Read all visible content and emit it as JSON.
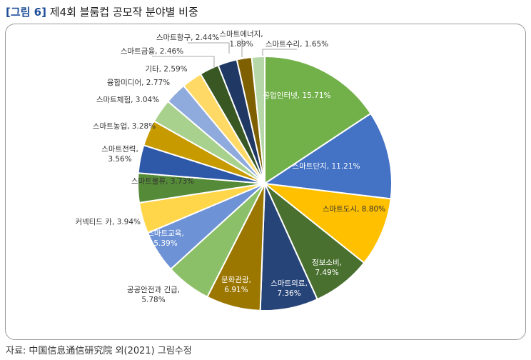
{
  "figure": {
    "tag": "[그림 6]",
    "title": "제4회 블룸컵 공모작 분야별 비중"
  },
  "source": "자료: 中国信息通信研究院 외(2021) 그림수정",
  "chart_data": {
    "type": "pie",
    "title": "",
    "categories": [
      "공업인터넷",
      "스마트단지",
      "스마트도시",
      "정보소비",
      "스마트의료",
      "문화관광",
      "공공안전과 긴급",
      "스마트교육",
      "커넥티드 카",
      "스마트물류",
      "스마트전력",
      "스마트농업",
      "스마트체험",
      "융합미디어",
      "기타",
      "스마트금융",
      "스마트항구",
      "스마트에너지",
      "스마트수리"
    ],
    "values": [
      15.71,
      11.21,
      8.8,
      7.49,
      7.36,
      6.91,
      5.78,
      5.39,
      3.94,
      3.73,
      3.56,
      3.28,
      3.04,
      2.77,
      2.59,
      2.46,
      2.44,
      1.89,
      1.65
    ],
    "labels": [
      "공업인터넷, 15.71%",
      "스마트단지, 11.21%",
      "스마트도시, 8.80%",
      "정보소비,|7.49%",
      "스마트의료,|7.36%",
      "문화관광,|6.91%",
      "공공안전과 긴급,|5.78%",
      "스마트교육,|5.39%",
      "커넥티드 카, 3.94%",
      "스마트물류, 3.73%",
      "스마트전력,|3.56%",
      "스마트농업, 3.28%",
      "스마트체험, 3.04%",
      "융합미디어, 2.77%",
      "기타, 2.59%",
      "스마트금융, 2.46%",
      "스마트항구, 2.44%",
      "스마트에너지,|1.89%",
      "스마트수리, 1.65%"
    ],
    "colors": [
      "#72b04a",
      "#4472c4",
      "#ffc000",
      "#4a7030",
      "#264478",
      "#9c7700",
      "#8cc068",
      "#6d92d6",
      "#ffd54a",
      "#558b38",
      "#2e58a8",
      "#c79a00",
      "#a9d18e",
      "#8faadc",
      "#ffd966",
      "#385723",
      "#1f3864",
      "#7f6000",
      "#b6d7a8"
    ]
  }
}
